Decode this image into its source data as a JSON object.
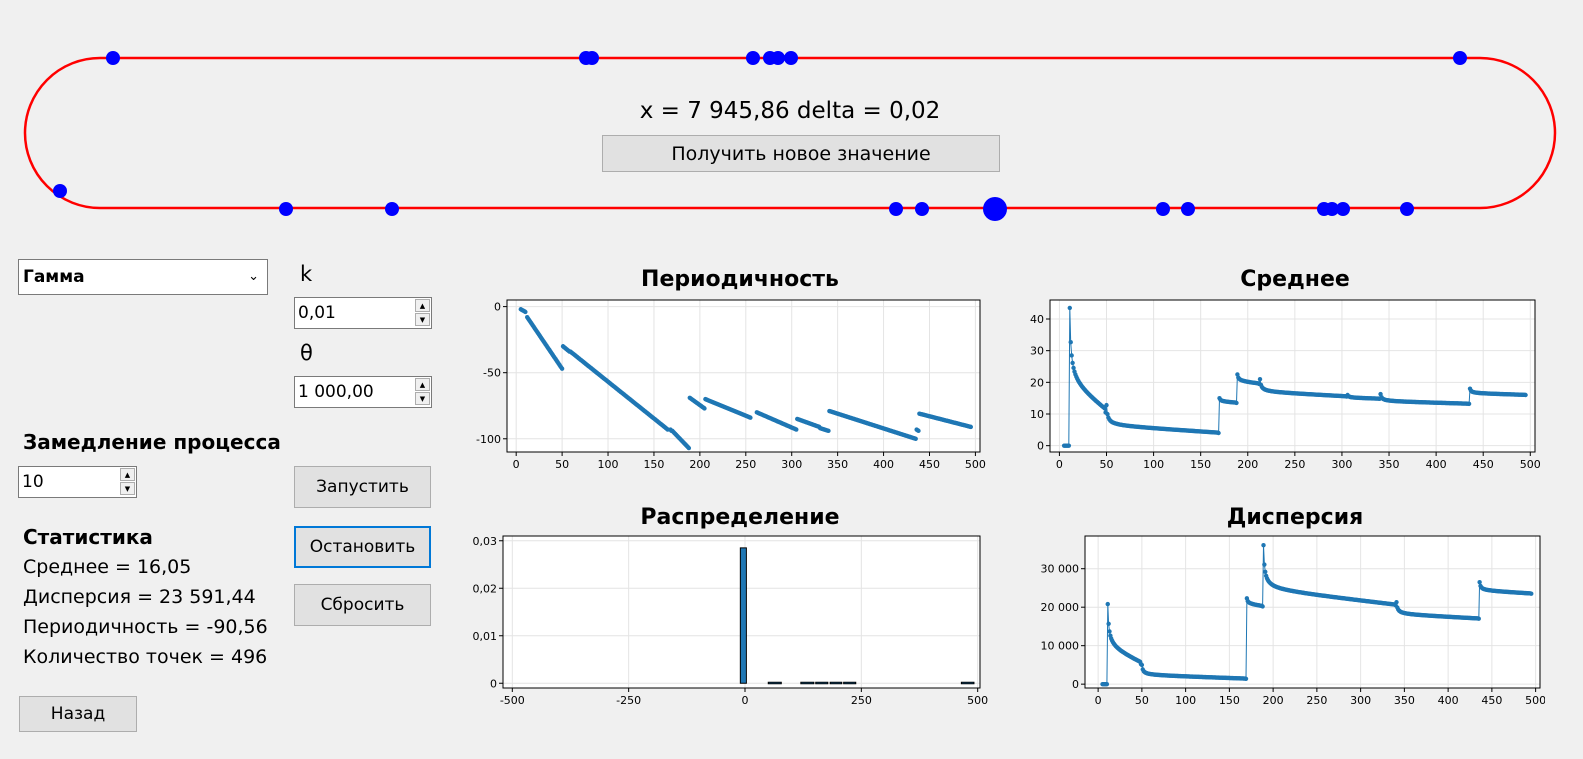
{
  "readout": "x = 7 945,86 delta = 0,02",
  "new_value_button": "Получить новое значение",
  "distribution_select": {
    "selected": "Гамма"
  },
  "params": [
    {
      "label": "k",
      "value": "0,01"
    },
    {
      "label": "θ",
      "value": "1 000,00"
    }
  ],
  "slowdown": {
    "label": "Замедление процесса",
    "value": "10"
  },
  "buttons": {
    "start": "Запустить",
    "stop": "Остановить",
    "reset": "Сбросить",
    "back": "Назад"
  },
  "stats": {
    "title": "Статистика",
    "mean": "Среднее = 16,05",
    "variance": "Дисперсия = 23 591,44",
    "periodicity": "Периодичность = -90,56",
    "count": "Количество точек = 496"
  },
  "colors": {
    "track": "#ff0000",
    "point": "#0000ff",
    "series": "#1f77b4"
  },
  "chart_data": [
    {
      "id": "periodicity",
      "type": "scatter",
      "title": "Периодичность",
      "xlim": [
        -10,
        505
      ],
      "ylim": [
        -110,
        5
      ],
      "xticks": [
        0,
        50,
        100,
        150,
        200,
        250,
        300,
        350,
        400,
        450,
        500
      ],
      "yticks": [
        0,
        -50,
        -100
      ],
      "xtick_labels": [
        "0",
        "50",
        "100",
        "150",
        "200",
        "250",
        "300",
        "350",
        "400",
        "450",
        "500"
      ],
      "ytick_labels": [
        "0",
        "-50",
        "-100"
      ],
      "segments": [
        [
          [
            5,
            -2
          ],
          [
            10,
            -4
          ]
        ],
        [
          [
            12,
            -8
          ],
          [
            50,
            -47
          ]
        ],
        [
          [
            51,
            -30
          ],
          [
            58,
            -34
          ]
        ],
        [
          [
            59,
            -34
          ],
          [
            165,
            -93
          ]
        ],
        [
          [
            168,
            -93
          ],
          [
            169,
            -94
          ]
        ],
        [
          [
            170,
            -94
          ],
          [
            188,
            -107
          ]
        ],
        [
          [
            189,
            -69
          ],
          [
            205,
            -77
          ]
        ],
        [
          [
            206,
            -70
          ],
          [
            255,
            -84
          ]
        ],
        [
          [
            262,
            -80
          ],
          [
            305,
            -93
          ]
        ],
        [
          [
            306,
            -85
          ],
          [
            330,
            -91
          ]
        ],
        [
          [
            331,
            -92
          ],
          [
            340,
            -94
          ]
        ],
        [
          [
            341,
            -79
          ],
          [
            435,
            -100
          ]
        ],
        [
          [
            436,
            -93
          ],
          [
            438,
            -94
          ]
        ],
        [
          [
            439,
            -81
          ],
          [
            495,
            -91
          ]
        ]
      ]
    },
    {
      "id": "mean",
      "type": "scatter",
      "title": "Среднее",
      "xlim": [
        -10,
        505
      ],
      "ylim": [
        -2,
        46
      ],
      "xticks": [
        0,
        50,
        100,
        150,
        200,
        250,
        300,
        350,
        400,
        450,
        500
      ],
      "yticks": [
        0,
        10,
        20,
        30,
        40
      ],
      "xtick_labels": [
        "0",
        "50",
        "100",
        "150",
        "200",
        "250",
        "300",
        "350",
        "400",
        "450",
        "500"
      ],
      "ytick_labels": [
        "0",
        "10",
        "20",
        "30",
        "40"
      ],
      "curves": [
        {
          "from": [
            5,
            0
          ],
          "to": [
            10,
            0
          ]
        },
        {
          "decay": true,
          "x0": 11,
          "x1": 49,
          "y0": 43.5,
          "yend": 10.5
        },
        {
          "decay": true,
          "x0": 50,
          "x1": 169,
          "y0": 12.8,
          "yend": 4.0
        },
        {
          "decay": true,
          "x0": 170,
          "x1": 188,
          "y0": 15,
          "yend": 13.5
        },
        {
          "decay": true,
          "x0": 189,
          "x1": 212,
          "y0": 22.5,
          "yend": 19.5
        },
        {
          "decay": true,
          "x0": 213,
          "x1": 305,
          "y0": 21,
          "yend": 15.5
        },
        {
          "decay": true,
          "x0": 306,
          "x1": 340,
          "y0": 16,
          "yend": 14.8
        },
        {
          "decay": true,
          "x0": 341,
          "x1": 435,
          "y0": 16.3,
          "yend": 13.2
        },
        {
          "decay": true,
          "x0": 436,
          "x1": 495,
          "y0": 18,
          "yend": 16
        }
      ]
    },
    {
      "id": "distribution",
      "type": "bar",
      "title": "Распределение",
      "xlim": [
        -520,
        505
      ],
      "ylim": [
        -0.001,
        0.031
      ],
      "xticks": [
        -500,
        -250,
        0,
        250,
        500
      ],
      "yticks": [
        0,
        0.01,
        0.02,
        0.03
      ],
      "xtick_labels": [
        "-500",
        "-250",
        "0",
        "250",
        "500"
      ],
      "ytick_labels": [
        "0",
        "0,01",
        "0,02",
        "0,03"
      ],
      "bars": [
        {
          "x0": -10,
          "x1": 3,
          "y": 0.0285
        },
        {
          "x0": 50,
          "x1": 78,
          "y": 0.0001
        },
        {
          "x0": 120,
          "x1": 148,
          "y": 0.0001
        },
        {
          "x0": 152,
          "x1": 178,
          "y": 0.0001
        },
        {
          "x0": 183,
          "x1": 208,
          "y": 0.0001
        },
        {
          "x0": 212,
          "x1": 238,
          "y": 0.0001
        },
        {
          "x0": 465,
          "x1": 492,
          "y": 0.0001
        }
      ]
    },
    {
      "id": "variance",
      "type": "scatter",
      "title": "Дисперсия",
      "xlim": [
        -15,
        505
      ],
      "ylim": [
        -1000,
        38500
      ],
      "xticks": [
        0,
        50,
        100,
        150,
        200,
        250,
        300,
        350,
        400,
        450,
        500
      ],
      "yticks": [
        0,
        10000,
        20000,
        30000
      ],
      "xtick_labels": [
        "0",
        "50",
        "100",
        "150",
        "200",
        "250",
        "300",
        "350",
        "400",
        "450",
        "500"
      ],
      "ytick_labels": [
        "0",
        "10 000",
        "20 000",
        "30 000"
      ],
      "curves": [
        {
          "from": [
            5,
            0
          ],
          "to": [
            10,
            0
          ]
        },
        {
          "decay": true,
          "x0": 11,
          "x1": 49,
          "y0": 20800,
          "yend": 5200
        },
        {
          "decay": true,
          "x0": 50,
          "x1": 169,
          "y0": 5000,
          "yend": 1400
        },
        {
          "decay": true,
          "x0": 170,
          "x1": 188,
          "y0": 22300,
          "yend": 20200
        },
        {
          "decay": true,
          "x0": 189,
          "x1": 340,
          "y0": 36100,
          "yend": 20500
        },
        {
          "decay": true,
          "x0": 341,
          "x1": 435,
          "y0": 21300,
          "yend": 17000
        },
        {
          "decay": true,
          "x0": 436,
          "x1": 495,
          "y0": 26500,
          "yend": 23500
        }
      ]
    }
  ]
}
